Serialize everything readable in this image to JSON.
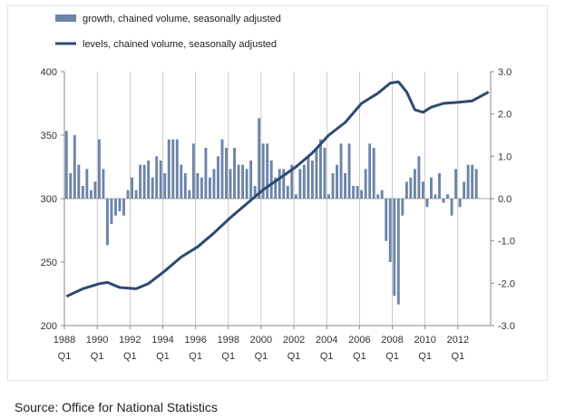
{
  "source": "Source: Office for National Statistics",
  "chart_data": {
    "type": "bar+line",
    "title": "",
    "legend_position": "top-left",
    "grid": "vertical",
    "x_labels": [
      {
        "year": "1988",
        "period": "Q1"
      },
      {
        "year": "1990",
        "period": "Q1"
      },
      {
        "year": "1992",
        "period": "Q1"
      },
      {
        "year": "1994",
        "period": "Q1"
      },
      {
        "year": "1996",
        "period": "Q1"
      },
      {
        "year": "1998",
        "period": "Q1"
      },
      {
        "year": "2000",
        "period": "Q1"
      },
      {
        "year": "2002",
        "period": "Q1"
      },
      {
        "year": "2004",
        "period": "Q1"
      },
      {
        "year": "2006",
        "period": "Q1"
      },
      {
        "year": "2008",
        "period": "Q1"
      },
      {
        "year": "2010",
        "period": "Q1"
      },
      {
        "year": "2012",
        "period": "Q1"
      }
    ],
    "x_range": [
      "1988 Q1",
      "2013 Q4"
    ],
    "left_axis": {
      "min": 200,
      "max": 400,
      "ticks": [
        "200",
        "250",
        "300",
        "350",
        "400"
      ]
    },
    "right_axis": {
      "min": -3.0,
      "max": 3.0,
      "ticks": [
        "-3.0",
        "-2.0",
        "-1.0",
        "0.0",
        "1.0",
        "2.0",
        "3.0"
      ]
    },
    "colors": {
      "bars": "#6c84a8",
      "line": "#2e4a72",
      "axes": "#888888",
      "grid": "#a8a8a8"
    },
    "series": [
      {
        "name": "growth, chained volume, seasonally adjusted",
        "type": "bar",
        "axis": "right",
        "start": "1988 Q1",
        "values": [
          1.6,
          0.6,
          1.5,
          0.8,
          0.3,
          0.7,
          0.2,
          0.4,
          1.4,
          0.7,
          -1.1,
          -0.6,
          -0.4,
          -0.3,
          -0.4,
          0.2,
          0.5,
          0.2,
          0.8,
          0.8,
          0.9,
          0.5,
          1.0,
          0.9,
          0.6,
          1.4,
          1.4,
          1.4,
          0.8,
          0.6,
          0.2,
          1.3,
          0.6,
          0.5,
          1.2,
          0.5,
          0.7,
          1.0,
          1.4,
          1.2,
          0.7,
          1.2,
          0.8,
          0.8,
          0.7,
          0.9,
          0.3,
          1.9,
          1.3,
          1.3,
          0.9,
          0.5,
          0.7,
          0.7,
          0.3,
          0.8,
          0.1,
          0.7,
          0.8,
          1.0,
          0.9,
          1.2,
          1.4,
          1.2,
          0.1,
          0.6,
          0.8,
          1.3,
          0.6,
          1.3,
          0.3,
          0.3,
          0.2,
          0.7,
          1.3,
          1.2,
          0.1,
          0.2,
          -1.0,
          -1.5,
          -2.3,
          -2.5,
          -0.4,
          0.4,
          0.5,
          0.7,
          1.0,
          0.4,
          -0.2,
          0.5,
          0.1,
          0.6,
          -0.1,
          0.1,
          -0.4,
          0.7,
          -0.2,
          0.4,
          0.8,
          0.8,
          0.7
        ]
      },
      {
        "name": "levels, chained volume, seasonally adjusted",
        "type": "line",
        "axis": "left",
        "points": [
          [
            "1988 Q1",
            223
          ],
          [
            "1989 Q1",
            229
          ],
          [
            "1990 Q1",
            233
          ],
          [
            "1990 Q3",
            234
          ],
          [
            "1991 Q2",
            230
          ],
          [
            "1992 Q2",
            229
          ],
          [
            "1993 Q1",
            233
          ],
          [
            "1994 Q1",
            243
          ],
          [
            "1995 Q1",
            254
          ],
          [
            "1996 Q1",
            262
          ],
          [
            "1997 Q1",
            273
          ],
          [
            "1998 Q1",
            285
          ],
          [
            "1999 Q1",
            296
          ],
          [
            "2000 Q1",
            307
          ],
          [
            "2001 Q1",
            316
          ],
          [
            "2002 Q1",
            325
          ],
          [
            "2003 Q1",
            336
          ],
          [
            "2004 Q1",
            350
          ],
          [
            "2005 Q1",
            360
          ],
          [
            "2006 Q1",
            375
          ],
          [
            "2007 Q1",
            383
          ],
          [
            "2007 Q4",
            391
          ],
          [
            "2008 Q2",
            392
          ],
          [
            "2008 Q4",
            384
          ],
          [
            "2009 Q2",
            370
          ],
          [
            "2009 Q4",
            368
          ],
          [
            "2010 Q2",
            372
          ],
          [
            "2011 Q1",
            375
          ],
          [
            "2012 Q1",
            376
          ],
          [
            "2012 Q4",
            377
          ],
          [
            "2013 Q4",
            384
          ]
        ]
      }
    ]
  }
}
